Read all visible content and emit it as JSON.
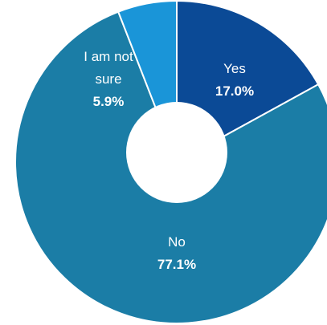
{
  "chart_data": {
    "type": "donut",
    "categories": [
      "Yes",
      "No",
      "I am not sure"
    ],
    "values": [
      17.0,
      77.1,
      5.9
    ],
    "value_labels": [
      "17.0%",
      "77.1%",
      "5.9%"
    ],
    "colors": [
      "#0b4a96",
      "#1b7da6",
      "#1a95d8"
    ]
  }
}
